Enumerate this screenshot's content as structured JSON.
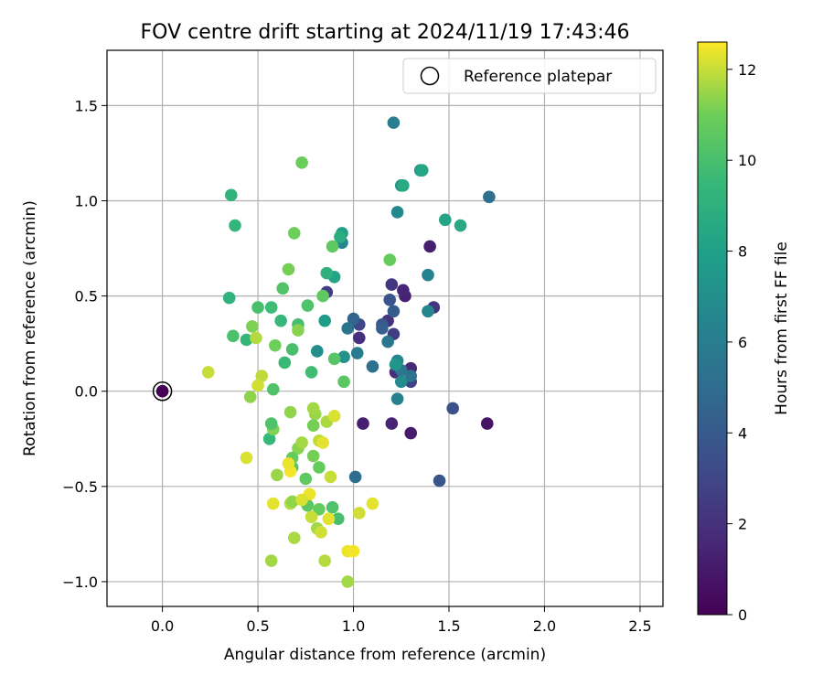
{
  "chart_data": {
    "type": "scatter",
    "title": "FOV centre drift starting at 2024/11/19 17:43:46",
    "xlabel": "Angular distance from reference (arcmin)",
    "ylabel": "Rotation from reference (arcmin)",
    "xlim": [
      -0.29,
      2.62
    ],
    "ylim": [
      -1.13,
      1.79
    ],
    "x_ticks": [
      "0.0",
      "0.5",
      "1.0",
      "1.5",
      "2.0",
      "2.5"
    ],
    "x_tick_values": [
      0.0,
      0.5,
      1.0,
      1.5,
      2.0,
      2.5
    ],
    "y_ticks": [
      "−1.0",
      "−0.5",
      "0.0",
      "0.5",
      "1.0",
      "1.5"
    ],
    "y_tick_values": [
      -1.0,
      -0.5,
      0.0,
      0.5,
      1.0,
      1.5
    ],
    "grid": true,
    "legend": {
      "placement": "top-right",
      "entries": [
        "Reference platepar"
      ]
    },
    "reference": {
      "x": 0.0,
      "y": 0.0,
      "hours": 0.0
    },
    "colorbar": {
      "label": "Hours from first FF file",
      "min": 0,
      "max": 12.6,
      "ticks": [
        "0",
        "2",
        "4",
        "6",
        "8",
        "10",
        "12"
      ],
      "tick_values": [
        0,
        2,
        4,
        6,
        8,
        10,
        12
      ],
      "colormap": "viridis"
    },
    "points": [
      [
        1.7,
        -0.17,
        0.8
      ],
      [
        1.3,
        -0.22,
        1.0
      ],
      [
        1.05,
        -0.17,
        1.2
      ],
      [
        1.2,
        -0.17,
        1.4
      ],
      [
        1.4,
        0.76,
        1.2
      ],
      [
        1.27,
        0.5,
        1.3
      ],
      [
        1.26,
        0.53,
        1.5
      ],
      [
        1.3,
        0.12,
        1.6
      ],
      [
        1.22,
        0.1,
        1.8
      ],
      [
        1.03,
        0.28,
        1.9
      ],
      [
        1.18,
        0.37,
        2.0
      ],
      [
        1.42,
        0.44,
        2.2
      ],
      [
        1.2,
        0.56,
        2.3
      ],
      [
        1.21,
        0.3,
        2.5
      ],
      [
        1.3,
        0.05,
        2.8
      ],
      [
        0.86,
        0.52,
        2.6
      ],
      [
        1.03,
        0.35,
        3.0
      ],
      [
        1.52,
        -0.09,
        3.5
      ],
      [
        1.45,
        -0.47,
        3.8
      ],
      [
        1.19,
        0.48,
        3.6
      ],
      [
        1.15,
        0.35,
        3.9
      ],
      [
        1.21,
        0.42,
        4.1
      ],
      [
        1.15,
        0.33,
        4.3
      ],
      [
        1.0,
        0.38,
        4.5
      ],
      [
        1.01,
        -0.45,
        5.0
      ],
      [
        1.71,
        1.02,
        5.2
      ],
      [
        1.3,
        0.08,
        5.4
      ],
      [
        1.25,
        0.11,
        5.5
      ],
      [
        1.1,
        0.13,
        5.3
      ],
      [
        0.97,
        0.33,
        5.4
      ],
      [
        1.18,
        0.26,
        5.6
      ],
      [
        1.02,
        0.2,
        5.8
      ],
      [
        1.21,
        1.41,
        6.0
      ],
      [
        1.23,
        -0.04,
        6.2
      ],
      [
        1.39,
        0.61,
        6.3
      ],
      [
        1.39,
        0.42,
        6.5
      ],
      [
        1.23,
        0.16,
        6.4
      ],
      [
        0.94,
        0.78,
        6.6
      ],
      [
        1.25,
        0.05,
        6.8
      ],
      [
        1.23,
        0.94,
        6.7
      ],
      [
        0.81,
        0.21,
        7.0
      ],
      [
        0.95,
        0.18,
        7.2
      ],
      [
        1.22,
        0.14,
        7.4
      ],
      [
        1.25,
        1.08,
        7.3
      ],
      [
        1.35,
        1.16,
        7.6
      ],
      [
        0.85,
        0.37,
        7.8
      ],
      [
        0.94,
        0.83,
        8.0
      ],
      [
        0.9,
        0.6,
        8.2
      ],
      [
        1.48,
        0.9,
        8.3
      ],
      [
        1.56,
        0.87,
        8.5
      ],
      [
        1.36,
        1.16,
        8.4
      ],
      [
        1.26,
        1.08,
        8.6
      ],
      [
        0.93,
        0.81,
        8.8
      ],
      [
        0.86,
        0.62,
        9.0
      ],
      [
        0.36,
        1.03,
        9.2
      ],
      [
        0.38,
        0.87,
        9.3
      ],
      [
        0.35,
        0.49,
        9.1
      ],
      [
        0.44,
        0.27,
        9.4
      ],
      [
        0.56,
        -0.25,
        9.5
      ],
      [
        0.64,
        0.15,
        9.6
      ],
      [
        0.57,
        0.44,
        9.7
      ],
      [
        0.78,
        0.1,
        9.8
      ],
      [
        0.71,
        0.35,
        9.9
      ],
      [
        0.62,
        0.37,
        9.5
      ],
      [
        0.68,
        0.22,
        10.0
      ],
      [
        0.37,
        0.29,
        10.1
      ],
      [
        0.58,
        0.01,
        10.2
      ],
      [
        0.63,
        0.54,
        10.3
      ],
      [
        0.5,
        0.44,
        10.0
      ],
      [
        0.76,
        0.45,
        10.2
      ],
      [
        0.9,
        0.17,
        10.4
      ],
      [
        0.95,
        0.05,
        10.5
      ],
      [
        0.84,
        0.5,
        10.6
      ],
      [
        0.89,
        0.76,
        10.6
      ],
      [
        1.19,
        0.69,
        10.8
      ],
      [
        0.73,
        1.2,
        10.9
      ],
      [
        0.69,
        0.83,
        11.0
      ],
      [
        0.66,
        0.64,
        11.1
      ],
      [
        0.47,
        0.34,
        11.2
      ],
      [
        0.59,
        0.24,
        11.0
      ],
      [
        0.58,
        -0.2,
        11.2
      ],
      [
        0.71,
        0.32,
        11.3
      ],
      [
        0.46,
        -0.03,
        11.4
      ],
      [
        0.6,
        -0.44,
        11.5
      ],
      [
        0.68,
        -0.4,
        10.4
      ],
      [
        0.75,
        -0.46,
        10.6
      ],
      [
        0.82,
        -0.4,
        10.8
      ],
      [
        0.79,
        -0.34,
        11.1
      ],
      [
        0.71,
        -0.3,
        11.3
      ],
      [
        0.8,
        -0.12,
        11.5
      ],
      [
        0.86,
        -0.16,
        11.7
      ],
      [
        0.82,
        -0.26,
        11.9
      ],
      [
        0.73,
        -0.27,
        11.6
      ],
      [
        0.79,
        -0.18,
        11.1
      ],
      [
        0.57,
        -0.17,
        10.2
      ],
      [
        0.67,
        -0.11,
        11.4
      ],
      [
        0.79,
        -0.09,
        11.6
      ],
      [
        0.88,
        -0.45,
        12.0
      ],
      [
        0.68,
        -0.35,
        10.8
      ],
      [
        0.9,
        -0.13,
        12.2
      ],
      [
        0.84,
        -0.27,
        12.3
      ],
      [
        0.52,
        0.08,
        11.9
      ],
      [
        0.5,
        0.03,
        12.1
      ],
      [
        0.24,
        0.1,
        12.0
      ],
      [
        0.44,
        -0.35,
        12.2
      ],
      [
        0.58,
        -0.59,
        12.3
      ],
      [
        0.75,
        -0.58,
        12.2
      ],
      [
        0.67,
        -0.59,
        11.8
      ],
      [
        0.68,
        -0.58,
        11.4
      ],
      [
        0.76,
        -0.6,
        10.5
      ],
      [
        0.82,
        -0.62,
        10.8
      ],
      [
        0.89,
        -0.61,
        10.2
      ],
      [
        0.92,
        -0.67,
        10.0
      ],
      [
        0.81,
        -0.72,
        11.6
      ],
      [
        0.83,
        -0.74,
        12.1
      ],
      [
        0.87,
        -0.67,
        12.3
      ],
      [
        0.78,
        -0.66,
        12.0
      ],
      [
        0.77,
        -0.54,
        12.4
      ],
      [
        0.69,
        -0.77,
        11.7
      ],
      [
        0.57,
        -0.89,
        11.6
      ],
      [
        0.85,
        -0.89,
        11.8
      ],
      [
        0.97,
        -0.84,
        12.4
      ],
      [
        1.0,
        -0.84,
        12.5
      ],
      [
        0.97,
        -1.0,
        11.6
      ],
      [
        1.03,
        -0.64,
        12.1
      ],
      [
        1.1,
        -0.59,
        12.3
      ],
      [
        0.67,
        -0.42,
        12.5
      ],
      [
        0.49,
        0.28,
        11.8
      ],
      [
        0.66,
        -0.38,
        12.4
      ],
      [
        0.73,
        -0.57,
        12.2
      ]
    ]
  }
}
